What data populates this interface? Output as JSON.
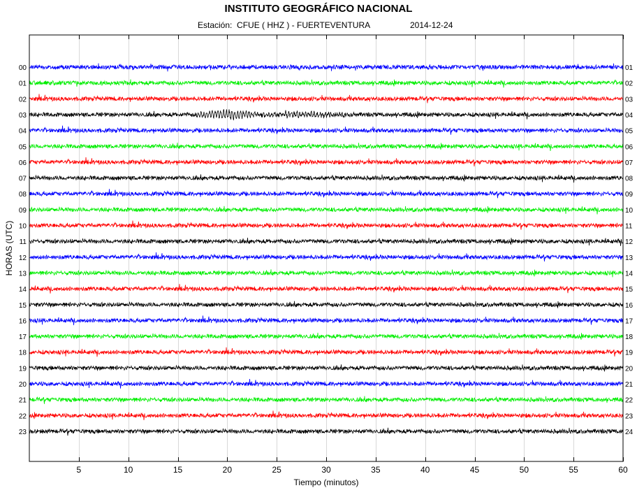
{
  "chart_data": {
    "type": "line",
    "title": "INSTITUTO GEOGRÁFICO NACIONAL",
    "station_label": "Estación:  CFUE ( HHZ ) - FUERTEVENTURA",
    "date": "2014-12-24",
    "xlabel": "Tiempo (minutos)",
    "ylabel": "HORAS (UTC)",
    "xlim": [
      0,
      60
    ],
    "xticks": [
      5,
      10,
      15,
      20,
      25,
      30,
      35,
      40,
      45,
      50,
      55,
      60
    ],
    "grid": true,
    "left_hour_labels": [
      "00",
      "01",
      "02",
      "03",
      "04",
      "05",
      "06",
      "07",
      "08",
      "09",
      "10",
      "11",
      "12",
      "13",
      "14",
      "15",
      "16",
      "17",
      "18",
      "19",
      "20",
      "21",
      "22",
      "23"
    ],
    "right_hour_labels": [
      "01",
      "02",
      "03",
      "04",
      "05",
      "06",
      "07",
      "08",
      "09",
      "10",
      "11",
      "12",
      "13",
      "14",
      "15",
      "16",
      "17",
      "18",
      "19",
      "20",
      "21",
      "22",
      "23",
      "24"
    ],
    "trace_colors": [
      "#0000ff",
      "#00ee00",
      "#ff0000",
      "#000000"
    ],
    "events": [
      {
        "hour": "03",
        "start_min": 15,
        "end_min": 33,
        "description_visible": false
      }
    ]
  }
}
